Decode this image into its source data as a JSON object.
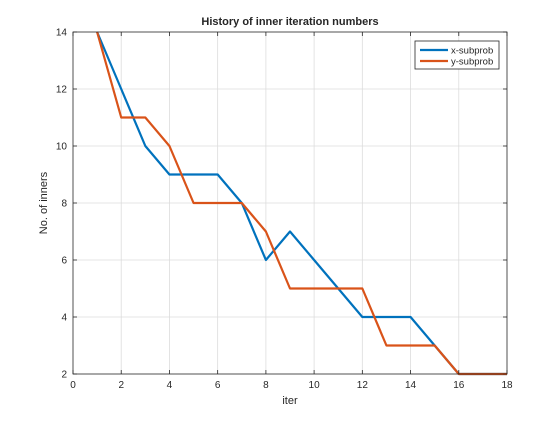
{
  "chart_data": {
    "type": "line",
    "title": "History of inner iteration numbers",
    "xlabel": "iter",
    "ylabel": "No. of inners",
    "xlim": [
      0,
      18
    ],
    "ylim": [
      2,
      14
    ],
    "xticks": [
      0,
      2,
      4,
      6,
      8,
      10,
      12,
      14,
      16,
      18
    ],
    "yticks": [
      2,
      4,
      6,
      8,
      10,
      12,
      14
    ],
    "grid": true,
    "legend_position": "top-right",
    "series": [
      {
        "name": "x-subprob",
        "color": "#0072BD",
        "x": [
          1,
          2,
          3,
          4,
          5,
          6,
          7,
          8,
          9,
          10,
          11,
          12,
          13,
          14,
          15,
          16,
          17,
          18
        ],
        "y": [
          14,
          12,
          10,
          9,
          9,
          9,
          8,
          6,
          7,
          6,
          5,
          4,
          4,
          4,
          3,
          2,
          2,
          2
        ]
      },
      {
        "name": "y-subprob",
        "color": "#D95319",
        "x": [
          1,
          2,
          3,
          4,
          5,
          6,
          7,
          8,
          9,
          10,
          11,
          12,
          13,
          14,
          15,
          16,
          17,
          18
        ],
        "y": [
          14,
          11,
          11,
          10,
          8,
          8,
          8,
          7,
          5,
          5,
          5,
          5,
          3,
          3,
          3,
          2,
          2,
          2
        ]
      }
    ]
  }
}
